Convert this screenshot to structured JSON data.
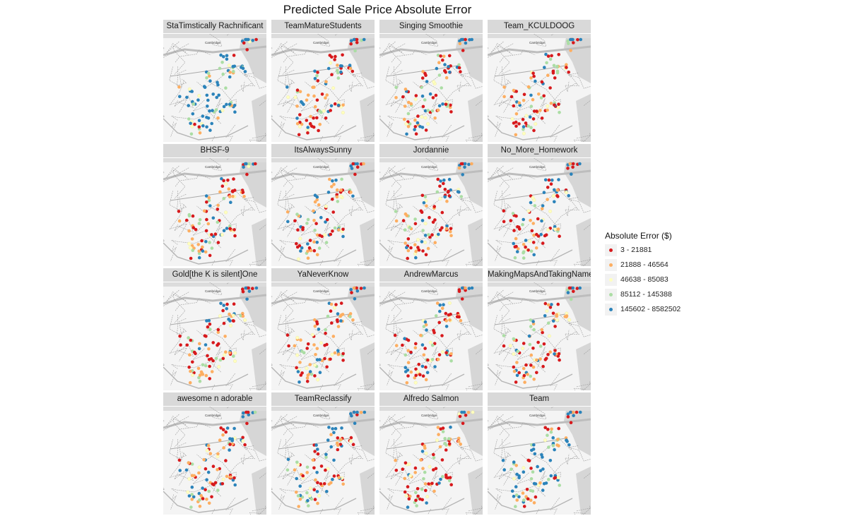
{
  "title": "Predicted Sale Price Absolute Error",
  "chart_data": {
    "type": "map-facets",
    "title": "Predicted Sale Price Absolute Error",
    "map_label": "Cambridge",
    "facets": [
      "StaTimstically Rachnificant",
      "TeamMatureStudents",
      "Singing Smoothie",
      "Team_KCULDOOG",
      "BHSF-9",
      "ItsAlwaysSunny",
      "Jordannie",
      "No_More_Homework",
      "Gold[the K is silent]One",
      "YaNeverKnow",
      "AndrewMarcus",
      "MakingMapsAndTakingNames",
      "awesome n adorable",
      "TeamReclassify",
      "Alfredo Salmon",
      "Team"
    ],
    "legend": {
      "title": "Absolute Error ($)",
      "classes": [
        {
          "label": "3 - 21881",
          "color": "#d7191c"
        },
        {
          "label": "21888 - 46564",
          "color": "#fdae61"
        },
        {
          "label": "46638 - 85083",
          "color": "#ffffbf"
        },
        {
          "label": "85112 - 145388",
          "color": "#abdda4"
        },
        {
          "label": "145602 - 8582502",
          "color": "#2b83ba"
        }
      ]
    }
  }
}
